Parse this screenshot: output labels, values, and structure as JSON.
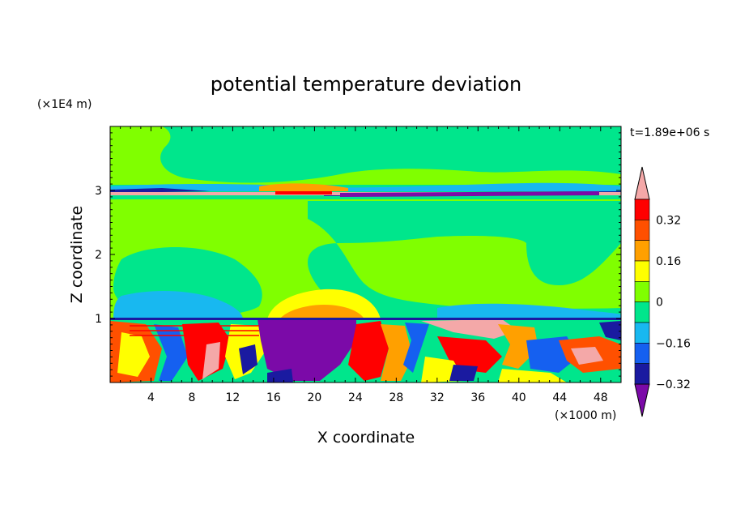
{
  "chart_data": {
    "type": "heatmap",
    "title": "potential temperature deviation",
    "time_label": "t=1.89e+06 s",
    "xlabel": "X coordinate",
    "ylabel": "Z coordinate",
    "x_unit": "(×1000 m)",
    "y_unit": "(×1E4 m)",
    "xlim": [
      0,
      50
    ],
    "ylim": [
      0,
      4
    ],
    "x_ticks": [
      4,
      8,
      12,
      16,
      20,
      24,
      28,
      32,
      36,
      40,
      44,
      48
    ],
    "y_ticks": [
      1,
      2,
      3
    ],
    "colorbar": {
      "levels": [
        -0.4,
        -0.32,
        -0.24,
        -0.16,
        -0.08,
        0,
        0.08,
        0.16,
        0.24,
        0.32,
        0.4
      ],
      "tick_labels": [
        "0.32",
        "0.16",
        "0",
        "−0.16",
        "−0.32"
      ],
      "colors": [
        "#7b0aa8",
        "#1a1aa0",
        "#1560f0",
        "#18b8f0",
        "#00e68c",
        "#80ff00",
        "#ffff00",
        "#ffa000",
        "#ff5000",
        "#ff0000",
        "#f4a8a8"
      ]
    },
    "field_description_values": {
      "upper_layer_z_1_to_3": "mostly 0 to 0.08 with slightly negative zones",
      "interface_z_3": "strong alternating extremes",
      "interface_z_1": "strong alternating extremes",
      "lower_layer_z_0_to_1": "turbulent mixture of all levels"
    }
  }
}
